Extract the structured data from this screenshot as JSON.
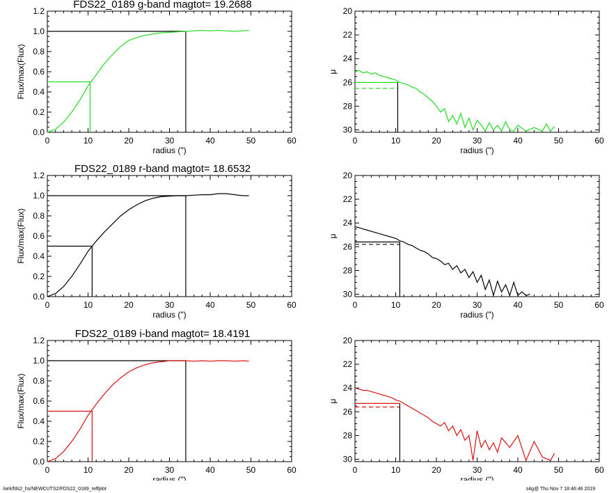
{
  "footer": {
    "path": "/wrk/fds2_hs/NEWCUTS2/FDS22_0189_reffplot",
    "stamp": "s4g@  Thu Nov  7 18:46:46 2019"
  },
  "colors": {
    "g": "#22dd22",
    "r": "#000000",
    "i": "#dd1111",
    "axis": "#000000"
  },
  "chart_data": [
    {
      "type": "line",
      "band": "g",
      "title": "FDS22_0189 g-band  magtot=     19.2688",
      "xlabel": "radius (\")",
      "ylabel": "Flux/max(Flux)",
      "xlim": [
        0,
        60
      ],
      "ylim": [
        0,
        1.2
      ],
      "xticks": [
        "0",
        "10",
        "20",
        "30",
        "40",
        "50",
        "60"
      ],
      "yticks": [
        "0.0",
        "0.2",
        "0.4",
        "0.6",
        "0.8",
        "1.0",
        "1.2"
      ],
      "re": 10.5,
      "r_total": 34,
      "x": [
        0,
        2,
        4,
        6,
        8,
        10,
        12,
        14,
        16,
        18,
        20,
        22,
        24,
        26,
        28,
        30,
        32,
        34,
        36,
        38,
        40,
        42,
        44,
        46,
        48,
        49.5
      ],
      "y": [
        0,
        0.03,
        0.1,
        0.2,
        0.32,
        0.46,
        0.57,
        0.68,
        0.77,
        0.85,
        0.91,
        0.94,
        0.96,
        0.975,
        0.985,
        0.99,
        0.995,
        1.0,
        1.005,
        1.01,
        1.005,
        1.01,
        1.005,
        1.0,
        1.005,
        1.01
      ]
    },
    {
      "type": "line",
      "band": "g",
      "title": "",
      "xlabel": "radius (\")",
      "ylabel": "μ",
      "xlim": [
        0,
        60
      ],
      "ylim": [
        30.2,
        20
      ],
      "reversed_y": true,
      "xticks": [
        "0",
        "10",
        "20",
        "30",
        "40",
        "50",
        "60"
      ],
      "yticks": [
        "20",
        "22",
        "24",
        "26",
        "28",
        "30"
      ],
      "re": 10.5,
      "mu_e": 26.0,
      "mu_mean": 26.5,
      "x": [
        0,
        1,
        2,
        3,
        4,
        5,
        6,
        7,
        8,
        9,
        10,
        11,
        12,
        13,
        14,
        15,
        16,
        17,
        18,
        19,
        20,
        21,
        22,
        23,
        24,
        25,
        26,
        27,
        28,
        29,
        30,
        31,
        32,
        33,
        34,
        35,
        36,
        37,
        38,
        39,
        40,
        42,
        44,
        46,
        47,
        48,
        49
      ],
      "y": [
        25.1,
        25.0,
        25.2,
        25.1,
        25.3,
        25.2,
        25.4,
        25.5,
        25.6,
        25.7,
        25.8,
        26.0,
        26.1,
        26.2,
        26.4,
        26.5,
        26.8,
        27.0,
        27.3,
        27.6,
        28.0,
        28.5,
        28.2,
        29.3,
        28.8,
        29.5,
        28.6,
        29.8,
        29.0,
        30.0,
        29.2,
        29.6,
        30.1,
        29.4,
        30.0,
        29.6,
        30.1,
        29.3,
        30.0,
        30.1,
        29.6,
        30.1,
        29.8,
        30.1,
        29.5,
        30.1,
        29.7
      ]
    },
    {
      "type": "line",
      "band": "r",
      "title": "FDS22_0189 r-band  magtot=     18.6532",
      "xlabel": "radius (\")",
      "ylabel": "Flux/max(Flux)",
      "xlim": [
        0,
        60
      ],
      "ylim": [
        0,
        1.2
      ],
      "xticks": [
        "0",
        "10",
        "20",
        "30",
        "40",
        "50",
        "60"
      ],
      "yticks": [
        "0.0",
        "0.2",
        "0.4",
        "0.6",
        "0.8",
        "1.0",
        "1.2"
      ],
      "re": 11,
      "r_total": 34,
      "x": [
        0,
        2,
        4,
        6,
        8,
        10,
        12,
        14,
        16,
        18,
        20,
        22,
        24,
        26,
        28,
        30,
        32,
        34,
        36,
        38,
        40,
        42,
        44,
        46,
        48,
        49.5
      ],
      "y": [
        0,
        0.03,
        0.1,
        0.2,
        0.32,
        0.45,
        0.55,
        0.64,
        0.72,
        0.8,
        0.86,
        0.91,
        0.95,
        0.975,
        0.99,
        0.995,
        1.0,
        1.0,
        1.005,
        1.01,
        1.01,
        1.02,
        1.02,
        1.01,
        1.0,
        1.0
      ]
    },
    {
      "type": "line",
      "band": "r",
      "title": "",
      "xlabel": "radius (\")",
      "ylabel": "μ",
      "xlim": [
        0,
        60
      ],
      "ylim": [
        30.2,
        20
      ],
      "reversed_y": true,
      "xticks": [
        "0",
        "10",
        "20",
        "30",
        "40",
        "50",
        "60"
      ],
      "yticks": [
        "20",
        "22",
        "24",
        "26",
        "28",
        "30"
      ],
      "re": 11,
      "mu_e": 25.6,
      "mu_mean": 25.8,
      "x": [
        0,
        1,
        2,
        3,
        4,
        5,
        6,
        7,
        8,
        9,
        10,
        11,
        12,
        13,
        14,
        15,
        16,
        17,
        18,
        19,
        20,
        21,
        22,
        23,
        24,
        25,
        26,
        27,
        28,
        29,
        30,
        31,
        32,
        33,
        34,
        35,
        36,
        37,
        38,
        39,
        40,
        41,
        42,
        43
      ],
      "y": [
        24.3,
        24.4,
        24.5,
        24.6,
        24.7,
        24.8,
        24.9,
        25.0,
        25.1,
        25.2,
        25.3,
        25.5,
        25.6,
        25.8,
        25.9,
        26.1,
        26.3,
        26.4,
        26.6,
        26.9,
        27.0,
        27.2,
        27.5,
        27.4,
        27.9,
        27.6,
        28.2,
        27.9,
        28.6,
        28.1,
        29.0,
        28.4,
        29.6,
        28.8,
        30.1,
        28.9,
        29.8,
        29.2,
        30.1,
        29.0,
        30.1,
        29.8,
        30.1,
        30.0
      ]
    },
    {
      "type": "line",
      "band": "i",
      "title": "FDS22_0189 i-band  magtot=     18.4191",
      "xlabel": "radius (\")",
      "ylabel": "Flux/max(Flux)",
      "xlim": [
        0,
        60
      ],
      "ylim": [
        0,
        1.2
      ],
      "xticks": [
        "0",
        "10",
        "20",
        "30",
        "40",
        "50",
        "60"
      ],
      "yticks": [
        "0.0",
        "0.2",
        "0.4",
        "0.6",
        "0.8",
        "1.0",
        "1.2"
      ],
      "re": 11,
      "r_total": 34,
      "x": [
        0,
        2,
        4,
        6,
        8,
        10,
        12,
        14,
        16,
        18,
        20,
        22,
        24,
        26,
        28,
        30,
        32,
        34,
        36,
        38,
        40,
        42,
        44,
        46,
        48,
        49.5
      ],
      "y": [
        0,
        0.03,
        0.1,
        0.2,
        0.32,
        0.46,
        0.57,
        0.67,
        0.76,
        0.83,
        0.89,
        0.93,
        0.96,
        0.98,
        0.99,
        1.0,
        1.0,
        1.0,
        0.995,
        1.0,
        0.995,
        1.0,
        1.0,
        0.995,
        1.0,
        0.995
      ]
    },
    {
      "type": "line",
      "band": "i",
      "title": "",
      "xlabel": "radius (\")",
      "ylabel": "μ",
      "xlim": [
        0,
        60
      ],
      "ylim": [
        30.2,
        20
      ],
      "reversed_y": true,
      "xticks": [
        "0",
        "10",
        "20",
        "30",
        "40",
        "50",
        "60"
      ],
      "yticks": [
        "20",
        "22",
        "24",
        "26",
        "28",
        "30"
      ],
      "re": 11,
      "mu_e": 25.3,
      "mu_mean": 25.6,
      "x": [
        0,
        1,
        2,
        3,
        4,
        5,
        6,
        7,
        8,
        9,
        10,
        11,
        12,
        13,
        14,
        15,
        16,
        17,
        18,
        19,
        20,
        21,
        22,
        23,
        24,
        25,
        26,
        27,
        28,
        29,
        30,
        31,
        32,
        33,
        34,
        35,
        36,
        38,
        40,
        42,
        44,
        46,
        48,
        49
      ],
      "y": [
        24.0,
        24.1,
        24.2,
        24.2,
        24.3,
        24.4,
        24.5,
        24.6,
        24.7,
        24.8,
        25.0,
        25.1,
        25.3,
        25.5,
        25.7,
        25.9,
        26.1,
        26.3,
        26.5,
        26.8,
        27.0,
        27.2,
        26.9,
        27.6,
        27.2,
        28.0,
        27.5,
        28.4,
        28.0,
        30.1,
        27.6,
        29.0,
        28.4,
        29.2,
        28.6,
        29.4,
        28.2,
        29.0,
        28.0,
        30.1,
        28.5,
        29.8,
        30.1,
        29.5
      ]
    }
  ]
}
